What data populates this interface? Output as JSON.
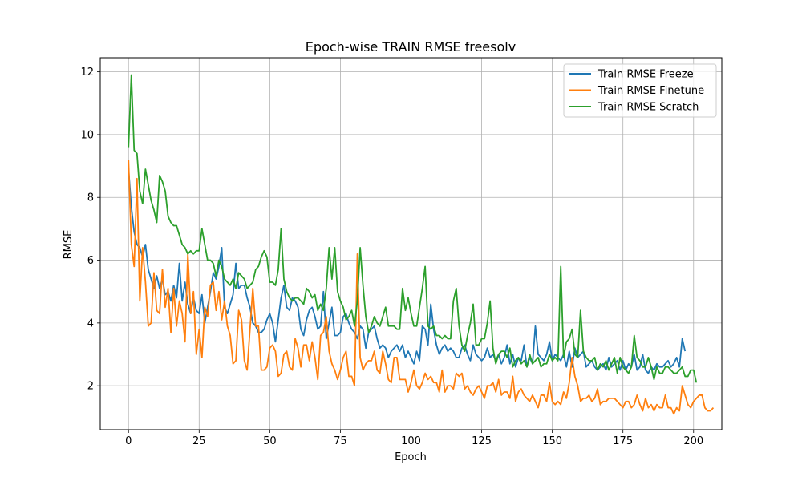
{
  "chart_data": {
    "type": "line",
    "title": "Epoch-wise TRAIN RMSE freesolv",
    "xlabel": "Epoch",
    "ylabel": "RMSE",
    "xlim": [
      -10,
      210
    ],
    "ylim": [
      0.6,
      12.45
    ],
    "xticks": [
      0,
      25,
      50,
      75,
      100,
      125,
      150,
      175,
      200
    ],
    "yticks": [
      2,
      4,
      6,
      8,
      10,
      12
    ],
    "grid": true,
    "legend_position": "top-right",
    "x_start": 0,
    "x_step": 1,
    "series": [
      {
        "name": "Train RMSE Freeze",
        "color": "#1f77b4",
        "values": [
          8.9,
          7.7,
          6.9,
          6.5,
          6.4,
          6.1,
          6.5,
          5.7,
          5.4,
          5.1,
          5.5,
          5.1,
          5.4,
          4.9,
          5.0,
          4.7,
          5.2,
          4.8,
          5.9,
          4.7,
          5.3,
          4.6,
          4.3,
          4.8,
          4.4,
          4.3,
          4.9,
          4.0,
          4.5,
          5.0,
          5.6,
          5.4,
          5.8,
          6.4,
          4.5,
          4.3,
          4.6,
          4.9,
          5.9,
          5.1,
          5.2,
          5.2,
          4.8,
          4.5,
          4.0,
          3.9,
          3.7,
          3.7,
          3.8,
          4.1,
          4.3,
          4.0,
          3.4,
          4.1,
          4.8,
          5.2,
          4.5,
          4.4,
          4.8,
          4.7,
          4.5,
          3.8,
          3.6,
          4.1,
          4.4,
          4.5,
          4.2,
          3.8,
          3.9,
          5.0,
          3.5,
          4.0,
          4.5,
          3.6,
          3.6,
          3.7,
          4.2,
          4.3,
          4.0,
          3.8,
          3.7,
          3.5,
          3.9,
          3.8,
          3.2,
          3.7,
          3.8,
          3.9,
          3.5,
          3.2,
          3.3,
          3.2,
          2.9,
          3.1,
          3.2,
          3.3,
          3.1,
          3.3,
          2.9,
          3.1,
          2.9,
          2.7,
          3.1,
          2.8,
          3.9,
          3.8,
          3.3,
          4.6,
          3.8,
          3.3,
          3.0,
          3.2,
          3.3,
          3.1,
          3.2,
          3.1,
          2.9,
          2.9,
          3.2,
          3.3,
          3.0,
          2.8,
          3.3,
          3.0,
          2.9,
          2.8,
          2.9,
          3.2,
          2.9,
          3.0,
          2.8,
          3.0,
          2.7,
          2.9,
          3.3,
          2.7,
          3.0,
          2.6,
          2.9,
          2.8,
          3.3,
          2.6,
          2.9,
          2.7,
          3.9,
          3.0,
          2.9,
          2.8,
          3.0,
          3.4,
          2.8,
          3.0,
          2.9,
          2.8,
          3.0,
          2.6,
          3.1,
          2.6,
          3.2,
          2.9,
          3.0,
          3.1,
          2.6,
          2.7,
          2.8,
          2.6,
          2.5,
          2.6,
          2.7,
          2.5,
          2.9,
          2.6,
          2.7,
          2.8,
          2.5,
          2.8,
          2.5,
          2.7,
          2.6,
          3.0,
          2.5,
          2.6,
          3.0,
          2.5,
          2.4,
          2.6,
          2.5,
          2.7,
          2.6,
          2.6,
          2.7,
          2.8,
          2.6,
          2.7,
          2.9,
          2.6,
          3.5,
          3.1
        ]
      },
      {
        "name": "Train RMSE Finetune",
        "color": "#ff7f0e",
        "values": [
          9.2,
          6.5,
          5.8,
          8.6,
          4.7,
          6.4,
          5.3,
          3.9,
          4.0,
          5.6,
          4.4,
          4.3,
          5.7,
          4.5,
          5.1,
          3.7,
          5.1,
          3.9,
          4.7,
          4.3,
          3.4,
          6.2,
          4.3,
          5.0,
          3.0,
          3.8,
          2.9,
          4.5,
          4.2,
          5.2,
          5.3,
          4.4,
          5.0,
          4.1,
          4.7,
          3.9,
          3.6,
          2.7,
          2.8,
          4.4,
          4.1,
          2.8,
          2.5,
          3.8,
          5.1,
          3.9,
          3.9,
          2.5,
          2.5,
          2.6,
          3.2,
          3.3,
          3.1,
          2.3,
          2.4,
          3.0,
          3.1,
          2.6,
          2.5,
          3.5,
          3.2,
          2.6,
          3.3,
          3.3,
          2.8,
          3.4,
          2.9,
          2.2,
          3.6,
          3.7,
          4.2,
          3.1,
          2.7,
          2.5,
          2.2,
          2.5,
          2.9,
          3.1,
          2.3,
          2.3,
          2.0,
          6.2,
          2.9,
          2.5,
          2.7,
          2.8,
          2.8,
          3.1,
          2.5,
          2.4,
          3.1,
          2.7,
          2.2,
          2.1,
          2.9,
          2.9,
          2.2,
          2.2,
          2.2,
          1.8,
          2.1,
          2.5,
          2.0,
          1.9,
          2.1,
          2.4,
          2.2,
          2.3,
          2.1,
          2.1,
          1.8,
          2.5,
          1.8,
          2.0,
          2.0,
          1.9,
          2.4,
          2.3,
          2.4,
          1.9,
          2.0,
          1.8,
          1.7,
          1.9,
          2.0,
          1.8,
          1.6,
          2.0,
          2.0,
          2.1,
          1.8,
          2.2,
          1.7,
          1.8,
          1.8,
          1.6,
          2.3,
          1.5,
          1.8,
          1.9,
          1.7,
          1.6,
          1.5,
          1.7,
          1.5,
          1.3,
          1.7,
          1.7,
          1.5,
          2.1,
          1.5,
          1.4,
          1.5,
          1.4,
          1.8,
          1.6,
          2.1,
          2.9,
          2.3,
          2.0,
          1.5,
          1.6,
          1.6,
          1.7,
          1.5,
          1.6,
          1.9,
          1.4,
          1.5,
          1.5,
          1.6,
          1.6,
          1.6,
          1.5,
          1.4,
          1.3,
          1.5,
          1.5,
          1.3,
          1.4,
          1.7,
          1.4,
          1.2,
          1.6,
          1.3,
          1.4,
          1.2,
          1.4,
          1.3,
          1.3,
          1.7,
          1.3,
          1.3,
          1.1,
          1.3,
          1.2,
          2.0,
          1.7,
          1.4,
          1.3,
          1.5,
          1.6,
          1.7,
          1.7,
          1.3,
          1.2,
          1.2,
          1.3
        ]
      },
      {
        "name": "Train RMSE Scratch",
        "color": "#2ca02c",
        "values": [
          9.6,
          11.9,
          9.5,
          9.4,
          8.2,
          7.8,
          8.9,
          8.4,
          7.9,
          7.6,
          7.2,
          8.7,
          8.5,
          8.2,
          7.4,
          7.2,
          7.1,
          7.1,
          6.8,
          6.5,
          6.4,
          6.2,
          6.3,
          6.2,
          6.3,
          6.3,
          7.0,
          6.5,
          6.0,
          6.0,
          5.9,
          5.5,
          6.0,
          5.8,
          5.4,
          5.3,
          5.2,
          5.4,
          5.1,
          5.6,
          5.5,
          5.4,
          5.1,
          5.2,
          5.3,
          5.7,
          5.8,
          6.1,
          6.3,
          6.1,
          5.3,
          5.3,
          5.2,
          5.7,
          7.0,
          5.4,
          5.0,
          4.8,
          4.7,
          4.8,
          4.8,
          4.7,
          4.6,
          5.1,
          5.0,
          4.8,
          4.9,
          4.4,
          4.6,
          4.4,
          5.1,
          6.4,
          5.4,
          6.4,
          5.0,
          4.7,
          4.5,
          4.1,
          4.2,
          4.4,
          3.9,
          4.7,
          6.4,
          5.2,
          4.2,
          3.7,
          3.9,
          4.2,
          4.0,
          3.9,
          4.2,
          4.5,
          3.9,
          3.9,
          3.9,
          3.8,
          3.8,
          5.1,
          4.4,
          4.8,
          4.3,
          3.9,
          3.9,
          4.5,
          5.1,
          5.8,
          3.9,
          3.8,
          3.9,
          3.6,
          3.6,
          3.5,
          3.6,
          3.5,
          3.5,
          4.7,
          5.1,
          3.9,
          3.3,
          3.1,
          3.6,
          4.0,
          4.6,
          3.3,
          3.3,
          3.5,
          3.5,
          4.0,
          4.7,
          3.2,
          2.7,
          3.0,
          3.1,
          3.1,
          2.9,
          3.2,
          2.6,
          2.8,
          2.9,
          2.7,
          2.8,
          2.6,
          3.0,
          2.7,
          2.8,
          2.9,
          2.6,
          2.7,
          2.7,
          3.0,
          2.8,
          2.9,
          2.8,
          5.8,
          2.9,
          3.4,
          3.5,
          3.8,
          3.0,
          2.9,
          4.4,
          3.1,
          2.9,
          2.8,
          2.8,
          2.9,
          2.5,
          2.7,
          2.6,
          2.8,
          2.5,
          2.7,
          2.9,
          2.4,
          2.9,
          2.6,
          2.5,
          2.4,
          2.6,
          3.6,
          2.9,
          2.8,
          2.6,
          2.6,
          2.9,
          2.6,
          2.2,
          2.6,
          2.4,
          2.4,
          2.6,
          2.6,
          2.5,
          2.4,
          2.4,
          2.5,
          2.6,
          2.3,
          2.3,
          2.5,
          2.5,
          2.1
        ]
      }
    ]
  }
}
